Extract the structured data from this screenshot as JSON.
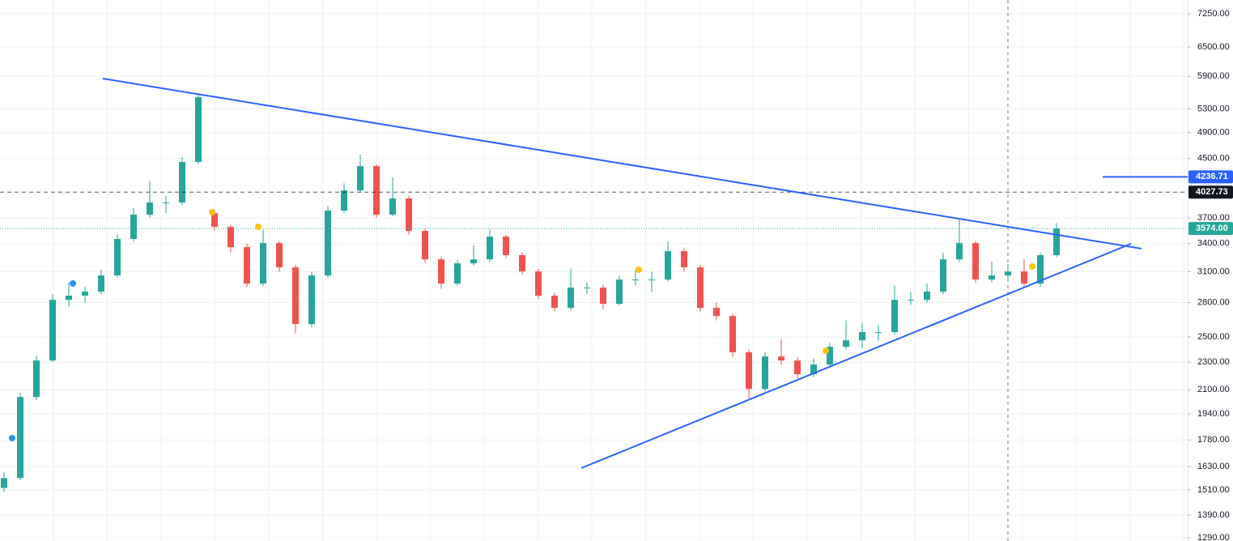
{
  "chart_data": {
    "type": "candlestick",
    "log_scale": true,
    "grid": true,
    "up_color": "#26a69a",
    "down_color": "#ef5350",
    "ylim": [
      1276,
      7587
    ],
    "yticks": [
      {
        "value": 7250,
        "label": "7250.00"
      },
      {
        "value": 6500,
        "label": "6500.00"
      },
      {
        "value": 5900,
        "label": "5900.00"
      },
      {
        "value": 5300,
        "label": "5300.00"
      },
      {
        "value": 4900,
        "label": "4900.00"
      },
      {
        "value": 4500,
        "label": "4500.00"
      },
      {
        "value": 3700,
        "label": "3700.00"
      },
      {
        "value": 3400,
        "label": "3400.00"
      },
      {
        "value": 3100,
        "label": "3100.00"
      },
      {
        "value": 2800,
        "label": "2800.00"
      },
      {
        "value": 2500,
        "label": "2500.00"
      },
      {
        "value": 2300,
        "label": "2300.00"
      },
      {
        "value": 2100,
        "label": "2100.00"
      },
      {
        "value": 1940,
        "label": "1940.00"
      },
      {
        "value": 1780,
        "label": "1780.00"
      },
      {
        "value": 1630,
        "label": "1630.00"
      },
      {
        "value": 1510,
        "label": "1510.00"
      },
      {
        "value": 1390,
        "label": "1390.00"
      },
      {
        "value": 1290,
        "label": "1290.00"
      }
    ],
    "open": [
      1520,
      1570,
      2051,
      2313,
      2825,
      2864,
      2902,
      3061,
      3452,
      3740,
      3893,
      3893,
      4449,
      3760,
      3592,
      3361,
      2980,
      3406,
      3144,
      2608,
      3061,
      3790,
      4051,
      4389,
      3740,
      3945,
      3545,
      3228,
      2980,
      3186,
      3228,
      3479,
      3273,
      3102,
      2864,
      2751,
      2941,
      2941,
      2788,
      3020,
      3020,
      3020,
      3316,
      3144,
      2751,
      2678,
      2376,
      2106,
      2344,
      2313,
      2211,
      2282,
      2420,
      2472,
      2540,
      2540,
      2825,
      2825,
      2902,
      3228,
      3406,
      3020,
      3061,
      3102,
      2980,
      3273
    ],
    "high": [
      1600,
      2080,
      2350,
      2880,
      2990,
      2950,
      3120,
      3500,
      3820,
      4180,
      3980,
      4520,
      5560,
      3800,
      3620,
      3400,
      3560,
      3430,
      3170,
      3100,
      3850,
      4150,
      4560,
      4420,
      4230,
      3980,
      3570,
      3260,
      3220,
      3380,
      3560,
      3500,
      3300,
      3130,
      2890,
      3130,
      2990,
      2970,
      3060,
      3120,
      3100,
      3420,
      3350,
      3170,
      2800,
      2700,
      2400,
      2380,
      2480,
      2340,
      2330,
      2450,
      2640,
      2620,
      2600,
      2960,
      2900,
      2980,
      3300,
      3700,
      3430,
      3200,
      3180,
      3230,
      3300,
      3640
    ],
    "low": [
      1500,
      1560,
      2030,
      2300,
      2760,
      2800,
      2880,
      3040,
      3420,
      3700,
      3760,
      3860,
      4420,
      3550,
      3300,
      2950,
      2960,
      3100,
      2530,
      2580,
      3040,
      3760,
      4020,
      3700,
      3720,
      3500,
      3190,
      2930,
      2960,
      3160,
      3200,
      3240,
      3070,
      2830,
      2720,
      2730,
      2880,
      2740,
      2770,
      2960,
      2900,
      3000,
      3100,
      2720,
      2640,
      2340,
      2040,
      2090,
      2280,
      2180,
      2190,
      2260,
      2400,
      2410,
      2470,
      2520,
      2780,
      2800,
      2880,
      3200,
      2990,
      2990,
      3000,
      2940,
      2950,
      3250
    ],
    "close": [
      1570,
      2051,
      2313,
      2825,
      2864,
      2902,
      3061,
      3452,
      3740,
      3893,
      3893,
      4449,
      5507,
      3592,
      3361,
      2980,
      3406,
      3144,
      2608,
      3061,
      3790,
      4051,
      4389,
      3740,
      3945,
      3545,
      3228,
      2980,
      3186,
      3228,
      3479,
      3273,
      3102,
      2864,
      2751,
      2941,
      2941,
      2788,
      3020,
      3020,
      3020,
      3316,
      3144,
      2751,
      2678,
      2376,
      2106,
      2344,
      2313,
      2211,
      2282,
      2420,
      2472,
      2540,
      2540,
      2825,
      2825,
      2902,
      3228,
      3406,
      3020,
      3061,
      3102,
      2980,
      3273,
      3574
    ],
    "price_markers": [
      {
        "value": 4236.71,
        "label": "4236.71",
        "color": "#2962ff",
        "line": "ray"
      },
      {
        "value": 4027.73,
        "label": "4027.73",
        "color": "#131722",
        "line": "dashed"
      },
      {
        "value": 3574,
        "label": "3574.00",
        "color": "#26a69a",
        "line": "dotted"
      }
    ]
  }
}
